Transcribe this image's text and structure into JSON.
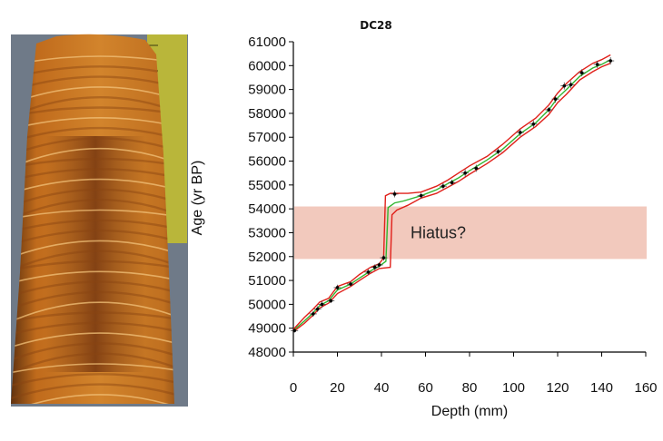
{
  "chart_data": {
    "type": "line",
    "title": "DC28",
    "xlabel": "Depth (mm)",
    "ylabel": "Age (yr BP)",
    "xlim": [
      0,
      160
    ],
    "ylim": [
      48000,
      61000
    ],
    "xticks": [
      0,
      20,
      40,
      60,
      80,
      100,
      120,
      140,
      160
    ],
    "yticks": [
      48000,
      49000,
      50000,
      51000,
      52000,
      53000,
      54000,
      55000,
      56000,
      57000,
      58000,
      59000,
      60000,
      61000
    ],
    "grid": false,
    "annotation": {
      "text": "Hiatus?",
      "y_range": [
        51900,
        54100
      ],
      "color": "#f2c9bd"
    },
    "series": [
      {
        "role": "dated-samples",
        "color": "#000000",
        "x": [
          0.5,
          9,
          11,
          13,
          17,
          20,
          26,
          34,
          37,
          39,
          41,
          46,
          58,
          68,
          72,
          78,
          83,
          93,
          103,
          109,
          116,
          119,
          123,
          126,
          131,
          138,
          144
        ],
        "y": [
          48900,
          49600,
          49800,
          50000,
          50150,
          50700,
          50850,
          51350,
          51550,
          51650,
          51950,
          54620,
          54550,
          54950,
          55100,
          55500,
          55700,
          56400,
          57200,
          57550,
          58150,
          58600,
          59150,
          59200,
          59700,
          60050,
          60200
        ],
        "err": [
          80,
          120,
          120,
          150,
          100,
          120,
          100,
          120,
          120,
          100,
          120,
          140,
          120,
          120,
          120,
          150,
          150,
          120,
          150,
          150,
          120,
          150,
          150,
          150,
          150,
          150,
          150
        ]
      },
      {
        "role": "age-model-median",
        "color": "#31b631",
        "x": [
          0,
          5,
          9,
          12,
          16,
          20,
          26,
          30,
          35,
          39,
          42,
          43,
          46,
          50,
          58,
          65,
          70,
          75,
          80,
          88,
          95,
          103,
          110,
          116,
          120,
          124,
          130,
          136,
          140,
          144
        ],
        "y": [
          48900,
          49300,
          49650,
          49950,
          50150,
          50600,
          50850,
          51100,
          51400,
          51600,
          51800,
          54050,
          54250,
          54330,
          54550,
          54800,
          55050,
          55300,
          55600,
          56050,
          56500,
          57150,
          57600,
          58150,
          58650,
          59000,
          59550,
          59900,
          60050,
          60250
        ]
      },
      {
        "role": "age-model-upper",
        "color": "#e0201a",
        "x": [
          0,
          5,
          9,
          12,
          16,
          20,
          26,
          30,
          35,
          39,
          41,
          41.8,
          44,
          48,
          52,
          58,
          65,
          70,
          75,
          80,
          88,
          95,
          103,
          110,
          116,
          120,
          124,
          130,
          136,
          140,
          144
        ],
        "y": [
          48950,
          49450,
          49800,
          50100,
          50250,
          50750,
          50950,
          51250,
          51550,
          51700,
          51950,
          54550,
          54650,
          54650,
          54650,
          54700,
          54950,
          55200,
          55500,
          55800,
          56200,
          56700,
          57350,
          57800,
          58350,
          58850,
          59250,
          59750,
          60100,
          60250,
          60450
        ]
      },
      {
        "role": "age-model-lower",
        "color": "#e0201a",
        "x": [
          0,
          5,
          9,
          12,
          16,
          20,
          26,
          30,
          35,
          39,
          44,
          44.8,
          47,
          52,
          58,
          65,
          70,
          75,
          80,
          88,
          95,
          103,
          110,
          116,
          120,
          124,
          130,
          136,
          140,
          144
        ],
        "y": [
          48850,
          49200,
          49550,
          49850,
          50050,
          50450,
          50750,
          51000,
          51300,
          51500,
          51550,
          53750,
          53950,
          54150,
          54450,
          54650,
          54900,
          55150,
          55450,
          55900,
          56350,
          57000,
          57450,
          57950,
          58450,
          58800,
          59400,
          59750,
          59950,
          60100
        ]
      }
    ]
  }
}
